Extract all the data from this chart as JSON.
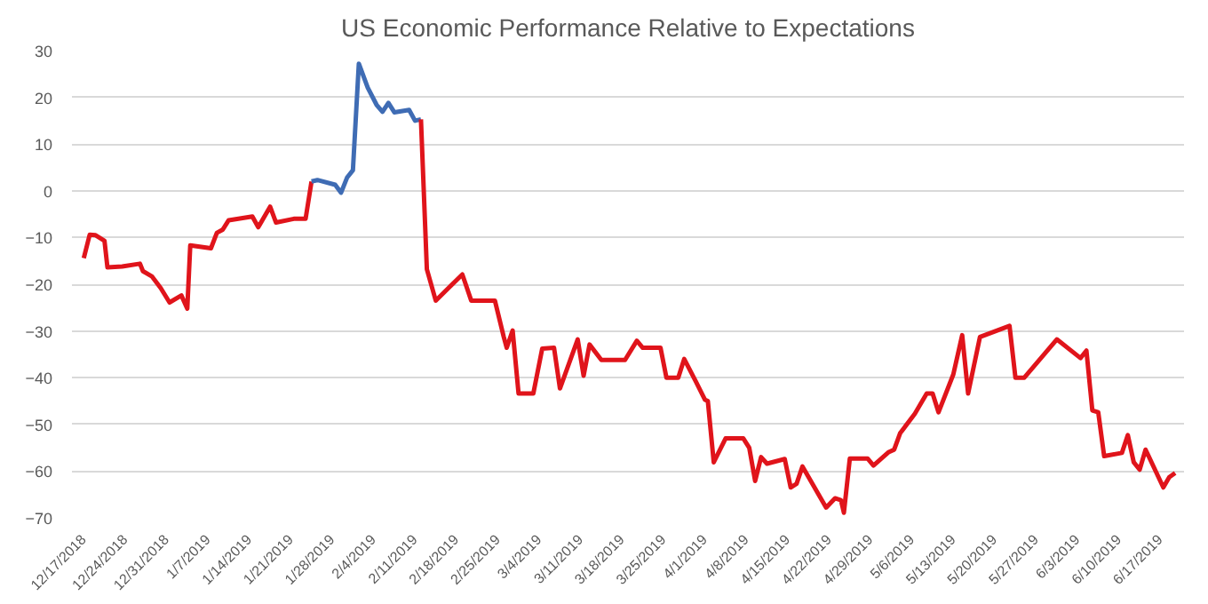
{
  "chart_data": {
    "type": "line",
    "title": "US Economic Performance Relative to Expectations",
    "series": [
      {
        "color": "#e0141b",
        "x": [
          "2018-12-17",
          "2018-12-18",
          "2018-12-19",
          "2018-12-20T12:00",
          "2018-12-21",
          "2018-12-23T12:00",
          "2018-12-26T12:00",
          "2018-12-27",
          "2018-12-28T12:00",
          "2018-12-30",
          "2018-12-31T12:00",
          "2019-01-02T12:00",
          "2019-01-03T12:00",
          "2019-01-04",
          "2019-01-07T12:00",
          "2019-01-08T12:00",
          "2019-01-09T12:00",
          "2019-01-10T12:00",
          "2019-01-14T12:00",
          "2019-01-15T12:00",
          "2019-01-17T12:00",
          "2019-01-18T12:00",
          "2019-01-21T12:00",
          "2019-01-23T12:00",
          "2019-01-24T12:00"
        ],
        "values": [
          -14.4,
          -9.4,
          -9.5,
          -10.7,
          -16.4,
          -16.2,
          -15.6,
          -17.2,
          -18.3,
          -20.8,
          -23.9,
          -22.4,
          -25.2,
          -11.7,
          -12.3,
          -9,
          -8.3,
          -6.3,
          -5.5,
          -7.8,
          -3.4,
          -6.8,
          -6,
          -6,
          2
        ]
      },
      {
        "color": "#3f6cb4",
        "x": [
          "2019-01-24T12:00",
          "2019-01-25T12:00",
          "2019-01-28T12:00",
          "2019-01-29T12:00",
          "2019-01-30T12:00",
          "2019-01-31T12:00",
          "2019-02-01T12:00",
          "2019-02-03",
          "2019-02-04T12:00",
          "2019-02-05T12:00",
          "2019-02-06T12:00",
          "2019-02-07T12:00",
          "2019-02-10",
          "2019-02-11",
          "2019-02-12"
        ],
        "values": [
          2,
          2.3,
          1.3,
          -0.4,
          2.8,
          4.4,
          27.2,
          22.1,
          18.4,
          16.9,
          18.8,
          16.8,
          17.3,
          15,
          15.3
        ]
      },
      {
        "color": "#e0141b",
        "x": [
          "2019-02-12",
          "2019-02-13",
          "2019-02-14T12:00",
          "2019-02-19",
          "2019-02-20T12:00",
          "2019-02-24T12:00",
          "2019-02-26",
          "2019-02-26T12:00",
          "2019-02-27T12:00",
          "2019-02-28T12:00",
          "2019-03-03",
          "2019-03-04T12:00",
          "2019-03-06T12:00",
          "2019-03-07T12:00",
          "2019-03-10T12:00",
          "2019-03-11T12:00",
          "2019-03-12T12:00",
          "2019-03-14T12:00",
          "2019-03-18T12:00",
          "2019-03-20T12:00",
          "2019-03-21T12:00",
          "2019-03-24T12:00",
          "2019-03-25T12:00",
          "2019-03-27T12:00",
          "2019-03-28T12:00",
          "2019-03-30T12:00",
          "2019-04-01",
          "2019-04-01T12:00",
          "2019-04-02T12:00",
          "2019-04-04T12:00",
          "2019-04-07T12:00",
          "2019-04-08T12:00",
          "2019-04-09T12:00",
          "2019-04-10T12:00",
          "2019-04-11T12:00",
          "2019-04-14T12:00",
          "2019-04-15T12:00",
          "2019-04-16T12:00",
          "2019-04-17T12:00",
          "2019-04-21T12:00",
          "2019-04-23",
          "2019-04-24",
          "2019-04-24T12:00",
          "2019-04-25T12:00",
          "2019-04-28T12:00",
          "2019-04-29T12:00",
          "2019-05-02",
          "2019-05-03",
          "2019-05-04",
          "2019-05-06T12:00",
          "2019-05-08T12:00",
          "2019-05-09T12:00",
          "2019-05-10T12:00",
          "2019-05-13",
          "2019-05-14T12:00",
          "2019-05-15T12:00",
          "2019-05-17T12:00",
          "2019-05-22T12:00",
          "2019-05-23T12:00",
          "2019-05-25",
          "2019-05-30T12:00",
          "2019-06-03T12:00",
          "2019-06-04T12:00",
          "2019-06-05T12:00",
          "2019-06-06T12:00",
          "2019-06-07T12:00",
          "2019-06-10T12:00",
          "2019-06-11T12:00",
          "2019-06-12T12:00",
          "2019-06-13T12:00",
          "2019-06-14T12:00",
          "2019-06-17T12:00",
          "2019-06-18T12:00",
          "2019-06-19T12:00"
        ],
        "values": [
          15.3,
          -16.8,
          -23.5,
          -17.9,
          -23.5,
          -23.5,
          -31.3,
          -33.6,
          -29.9,
          -43.4,
          -43.4,
          -33.8,
          -33.6,
          -42.3,
          -31.8,
          -39.6,
          -32.9,
          -36.2,
          -36.2,
          -32.1,
          -33.6,
          -33.6,
          -40,
          -40,
          -36,
          -40.9,
          -44.7,
          -45,
          -58.1,
          -53,
          -53,
          -55,
          -62.1,
          -57,
          -58.4,
          -57.4,
          -63.5,
          -62.7,
          -59,
          -67.8,
          -65.8,
          -66.2,
          -68.9,
          -57.3,
          -57.3,
          -58.8,
          -56,
          -55.4,
          -51.9,
          -47.7,
          -43.4,
          -43.4,
          -47.4,
          -39.3,
          -30.9,
          -43.4,
          -31.3,
          -28.9,
          -40,
          -40,
          -31.8,
          -35.8,
          -34.2,
          -47,
          -47.4,
          -56.8,
          -56.1,
          -52.3,
          -58.1,
          -59.7,
          -55.4,
          -63.5,
          -61.3,
          -60.4
        ]
      }
    ],
    "xlim": [
      "2018-12-15",
      "2019-06-21"
    ],
    "xticks": [
      {
        "value": "2018-12-17",
        "label": "12/17/2018"
      },
      {
        "value": "2018-12-24",
        "label": "12/24/2018"
      },
      {
        "value": "2018-12-31",
        "label": "12/31/2018"
      },
      {
        "value": "2019-01-07",
        "label": "1/7/2019"
      },
      {
        "value": "2019-01-14",
        "label": "1/14/2019"
      },
      {
        "value": "2019-01-21",
        "label": "1/21/2019"
      },
      {
        "value": "2019-01-28",
        "label": "1/28/2019"
      },
      {
        "value": "2019-02-04",
        "label": "2/4/2019"
      },
      {
        "value": "2019-02-11",
        "label": "2/11/2019"
      },
      {
        "value": "2019-02-18",
        "label": "2/18/2019"
      },
      {
        "value": "2019-02-25",
        "label": "2/25/2019"
      },
      {
        "value": "2019-03-04",
        "label": "3/4/2019"
      },
      {
        "value": "2019-03-11",
        "label": "3/11/2019"
      },
      {
        "value": "2019-03-18",
        "label": "3/18/2019"
      },
      {
        "value": "2019-03-25",
        "label": "3/25/2019"
      },
      {
        "value": "2019-04-01",
        "label": "4/1/2019"
      },
      {
        "value": "2019-04-08",
        "label": "4/8/2019"
      },
      {
        "value": "2019-04-15",
        "label": "4/15/2019"
      },
      {
        "value": "2019-04-22",
        "label": "4/22/2019"
      },
      {
        "value": "2019-04-29",
        "label": "4/29/2019"
      },
      {
        "value": "2019-05-06",
        "label": "5/6/2019"
      },
      {
        "value": "2019-05-13",
        "label": "5/13/2019"
      },
      {
        "value": "2019-05-20",
        "label": "5/20/2019"
      },
      {
        "value": "2019-05-27",
        "label": "5/27/2019"
      },
      {
        "value": "2019-06-03",
        "label": "6/3/2019"
      },
      {
        "value": "2019-06-10",
        "label": "6/10/2019"
      },
      {
        "value": "2019-06-17",
        "label": "6/17/2019"
      }
    ],
    "ylim": [
      -70,
      30
    ],
    "yticks": [
      -70,
      -60,
      -50,
      -40,
      -30,
      -20,
      -10,
      0,
      10,
      20,
      30
    ],
    "grid": "y",
    "marker": "none",
    "line_style": "solid"
  }
}
